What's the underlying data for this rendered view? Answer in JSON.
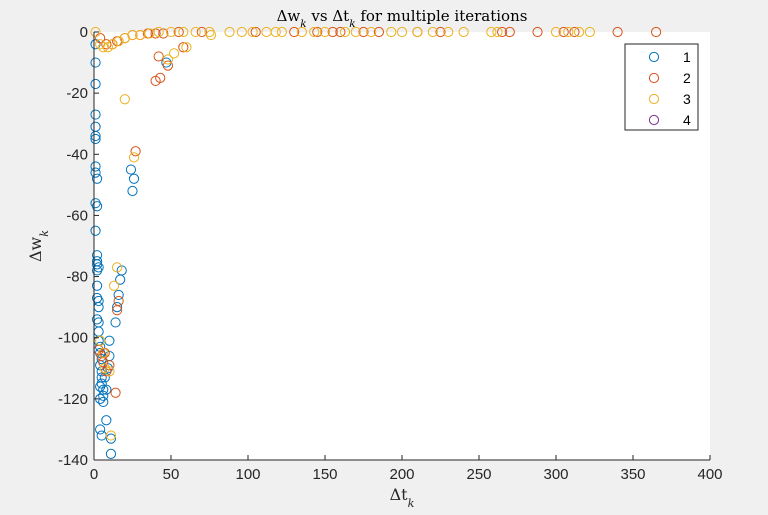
{
  "chart_data": {
    "type": "scatter",
    "title": "Δw_k vs Δt_k for multiple iterations",
    "xlabel": "Δt_k",
    "ylabel": "Δw_k",
    "xlim": [
      0,
      400
    ],
    "ylim": [
      -140,
      0
    ],
    "x_ticks": [
      0,
      50,
      100,
      150,
      200,
      250,
      300,
      350,
      400
    ],
    "y_ticks": [
      0,
      -20,
      -40,
      -60,
      -80,
      -100,
      -120,
      -140
    ],
    "grid": false,
    "legend_position": "top-right",
    "marker": "open-circle",
    "series": [
      {
        "name": "1",
        "color": "#0072BD",
        "points": [
          [
            1,
            -4
          ],
          [
            1,
            -10
          ],
          [
            1,
            -17
          ],
          [
            1,
            -27
          ],
          [
            1,
            -31
          ],
          [
            1,
            -34
          ],
          [
            1,
            -35
          ],
          [
            1,
            -44
          ],
          [
            1,
            -46
          ],
          [
            2,
            -48
          ],
          [
            1,
            -56
          ],
          [
            2,
            -57
          ],
          [
            1,
            -65
          ],
          [
            2,
            -73
          ],
          [
            2,
            -75
          ],
          [
            2,
            -76
          ],
          [
            3,
            -77
          ],
          [
            2,
            -78
          ],
          [
            2,
            -83
          ],
          [
            2,
            -87
          ],
          [
            3,
            -88
          ],
          [
            3,
            -90
          ],
          [
            2,
            -94
          ],
          [
            3,
            -95
          ],
          [
            3,
            -98
          ],
          [
            3,
            -101
          ],
          [
            4,
            -103
          ],
          [
            4,
            -105
          ],
          [
            5,
            -107
          ],
          [
            4,
            -109
          ],
          [
            5,
            -111
          ],
          [
            5,
            -113
          ],
          [
            5,
            -115
          ],
          [
            4,
            -116
          ],
          [
            6,
            -117
          ],
          [
            6,
            -119
          ],
          [
            6,
            -121
          ],
          [
            4,
            -120
          ],
          [
            8,
            -117
          ],
          [
            7,
            -113
          ],
          [
            9,
            -110
          ],
          [
            10,
            -106
          ],
          [
            10,
            -101
          ],
          [
            14,
            -95
          ],
          [
            15,
            -90
          ],
          [
            16,
            -86
          ],
          [
            17,
            -81
          ],
          [
            18,
            -78
          ],
          [
            8,
            -127
          ],
          [
            11,
            -133
          ],
          [
            11,
            -138
          ],
          [
            4,
            -130
          ],
          [
            5,
            -132
          ],
          [
            24,
            -45
          ],
          [
            25,
            -52
          ],
          [
            26,
            -48
          ],
          [
            47,
            -10
          ]
        ]
      },
      {
        "name": "2",
        "color": "#D95319",
        "points": [
          [
            4,
            -2
          ],
          [
            8,
            -4
          ],
          [
            12,
            -4
          ],
          [
            15,
            -3
          ],
          [
            20,
            -2
          ],
          [
            25,
            -1
          ],
          [
            30,
            -1
          ],
          [
            35,
            -0.5
          ],
          [
            40,
            -0.5
          ],
          [
            45,
            -0.5
          ],
          [
            55,
            0
          ],
          [
            70,
            0
          ],
          [
            105,
            0
          ],
          [
            130,
            0
          ],
          [
            145,
            0
          ],
          [
            155,
            0
          ],
          [
            160,
            0
          ],
          [
            175,
            0
          ],
          [
            185,
            0
          ],
          [
            210,
            0
          ],
          [
            225,
            0
          ],
          [
            265,
            0
          ],
          [
            270,
            0
          ],
          [
            288,
            0
          ],
          [
            305,
            0
          ],
          [
            312,
            0
          ],
          [
            340,
            0
          ],
          [
            365,
            0
          ],
          [
            40,
            -16
          ],
          [
            42,
            -8
          ],
          [
            43,
            -15
          ],
          [
            48,
            -11
          ],
          [
            58,
            -5
          ],
          [
            27,
            -39
          ],
          [
            3,
            -104
          ],
          [
            5,
            -106
          ],
          [
            6,
            -108
          ],
          [
            8,
            -111
          ],
          [
            10,
            -109
          ],
          [
            14,
            -118
          ],
          [
            15,
            -91
          ],
          [
            16,
            -88
          ],
          [
            7,
            -105
          ]
        ]
      },
      {
        "name": "3",
        "color": "#EDB120",
        "points": [
          [
            1,
            0
          ],
          [
            4,
            -4
          ],
          [
            6,
            -5
          ],
          [
            9,
            -5
          ],
          [
            12,
            -4
          ],
          [
            16,
            -3
          ],
          [
            20,
            -2
          ],
          [
            25,
            -1
          ],
          [
            30,
            -1
          ],
          [
            36,
            -0.5
          ],
          [
            42,
            0
          ],
          [
            50,
            0
          ],
          [
            58,
            0
          ],
          [
            66,
            0
          ],
          [
            75,
            0
          ],
          [
            88,
            0
          ],
          [
            96,
            0
          ],
          [
            103,
            0
          ],
          [
            112,
            0
          ],
          [
            118,
            0
          ],
          [
            122,
            0
          ],
          [
            135,
            0
          ],
          [
            143,
            0
          ],
          [
            150,
            0
          ],
          [
            163,
            0
          ],
          [
            170,
            0
          ],
          [
            180,
            0
          ],
          [
            193,
            0
          ],
          [
            200,
            0
          ],
          [
            210,
            0
          ],
          [
            220,
            0
          ],
          [
            230,
            0
          ],
          [
            240,
            0
          ],
          [
            258,
            0
          ],
          [
            262,
            0
          ],
          [
            300,
            0
          ],
          [
            308,
            0
          ],
          [
            315,
            0
          ],
          [
            322,
            0
          ],
          [
            76,
            -1
          ],
          [
            48,
            -9
          ],
          [
            52,
            -7
          ],
          [
            60,
            -5
          ],
          [
            20,
            -22
          ],
          [
            26,
            -41
          ],
          [
            15,
            -77
          ],
          [
            13,
            -83
          ],
          [
            4,
            -101
          ],
          [
            6,
            -105
          ],
          [
            7,
            -110
          ],
          [
            10,
            -111
          ],
          [
            11,
            -132
          ]
        ]
      },
      {
        "name": "4",
        "color": "#7E2F8E",
        "points": []
      }
    ]
  }
}
